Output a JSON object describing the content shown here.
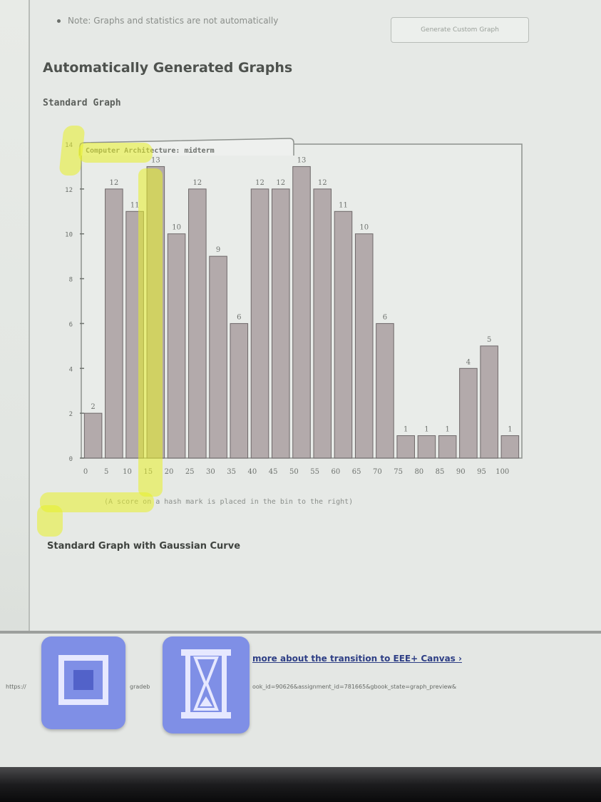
{
  "page": {
    "note": "Note: Graphs and statistics are not automatically",
    "section_heading": "Automatically Generated Graphs",
    "generate_custom_graph_label": "Generate Custom Graph",
    "standard_graph_heading": "Standard Graph",
    "footnote": "(A score on a hash mark is placed in the bin to the right)",
    "gaussian_heading": "Standard Graph with Gaussian Curve"
  },
  "footer": {
    "banner_text": "more about the transition to EEE+ Canvas ›",
    "url_left": "https://",
    "url_mid": "gradeb",
    "url_right": "ook_id=90626&assignment_id=781665&gbook_state=graph_preview&"
  },
  "colors": {
    "bar_fill": "#b3aaab",
    "bar_stroke": "#6e6869",
    "highlighter": "#e8f028",
    "dock_button": "#7f8fe6",
    "banner_link": "#2e3f85"
  },
  "icons": {
    "stop_button": "stop-square-icon",
    "hourglass_button": "hourglass-icon"
  },
  "chart_data": {
    "type": "bar",
    "title": "Computer Architecture: midterm",
    "categories": [
      "0",
      "5",
      "10",
      "15",
      "20",
      "25",
      "30",
      "35",
      "40",
      "45",
      "50",
      "55",
      "60",
      "65",
      "70",
      "75",
      "80",
      "85",
      "90",
      "95",
      "100"
    ],
    "x_tick_labels": [
      "0",
      "5",
      "10",
      "15",
      "20",
      "25",
      "30",
      "35",
      "40",
      "45",
      "50",
      "55",
      "60",
      "65",
      "70",
      "75",
      "80",
      "85",
      "90",
      "95",
      "100"
    ],
    "values": [
      2,
      12,
      11,
      13,
      10,
      12,
      9,
      6,
      12,
      12,
      13,
      12,
      11,
      10,
      6,
      1,
      1,
      1,
      4,
      5,
      1
    ],
    "y_tick_labels": [
      "0",
      "2",
      "4",
      "6",
      "8",
      "10",
      "12",
      "14"
    ],
    "ylim": [
      0,
      14
    ],
    "xlabel": "",
    "ylabel": "",
    "grid": false,
    "data_labels": true
  }
}
